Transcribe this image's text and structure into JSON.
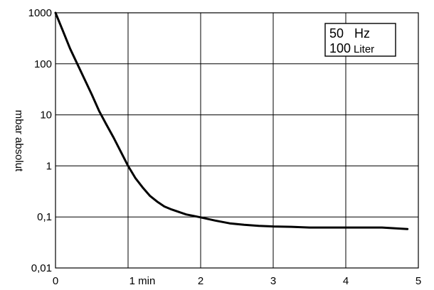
{
  "chart_data": {
    "type": "line",
    "title": "",
    "xlabel": "",
    "ylabel": "mbar absolut",
    "xlim": [
      0,
      5
    ],
    "ylim": [
      0.01,
      1000
    ],
    "yscale": "log",
    "grid": true,
    "x_ticks": [
      {
        "value": 0,
        "label": "0"
      },
      {
        "value": 1,
        "label": "1 min"
      },
      {
        "value": 2,
        "label": "2"
      },
      {
        "value": 3,
        "label": "3"
      },
      {
        "value": 4,
        "label": "4"
      },
      {
        "value": 5,
        "label": "5"
      }
    ],
    "y_ticks": [
      {
        "value": 1000,
        "label": "1000"
      },
      {
        "value": 100,
        "label": "100"
      },
      {
        "value": 10,
        "label": "10"
      },
      {
        "value": 1,
        "label": "1"
      },
      {
        "value": 0.1,
        "label": "0,1"
      },
      {
        "value": 0.01,
        "label": "0,01"
      }
    ],
    "annotation": {
      "line1_value": "50",
      "line1_unit": "Hz",
      "line2_value": "100",
      "line2_unit": "Liter"
    },
    "series": [
      {
        "color": "#000000",
        "x": [
          0,
          0.1,
          0.2,
          0.3,
          0.4,
          0.5,
          0.6,
          0.7,
          0.8,
          0.9,
          1.0,
          1.1,
          1.2,
          1.3,
          1.4,
          1.5,
          1.6,
          1.7,
          1.8,
          1.9,
          2.0,
          2.2,
          2.4,
          2.6,
          2.8,
          3.0,
          3.25,
          3.5,
          4.0,
          4.5,
          4.85
        ],
        "y": [
          1000,
          450,
          200,
          100,
          50,
          25,
          12,
          6.5,
          3.6,
          1.9,
          1.0,
          0.58,
          0.38,
          0.26,
          0.2,
          0.16,
          0.14,
          0.125,
          0.112,
          0.105,
          0.098,
          0.085,
          0.075,
          0.07,
          0.067,
          0.065,
          0.064,
          0.062,
          0.062,
          0.062,
          0.058
        ]
      }
    ]
  }
}
